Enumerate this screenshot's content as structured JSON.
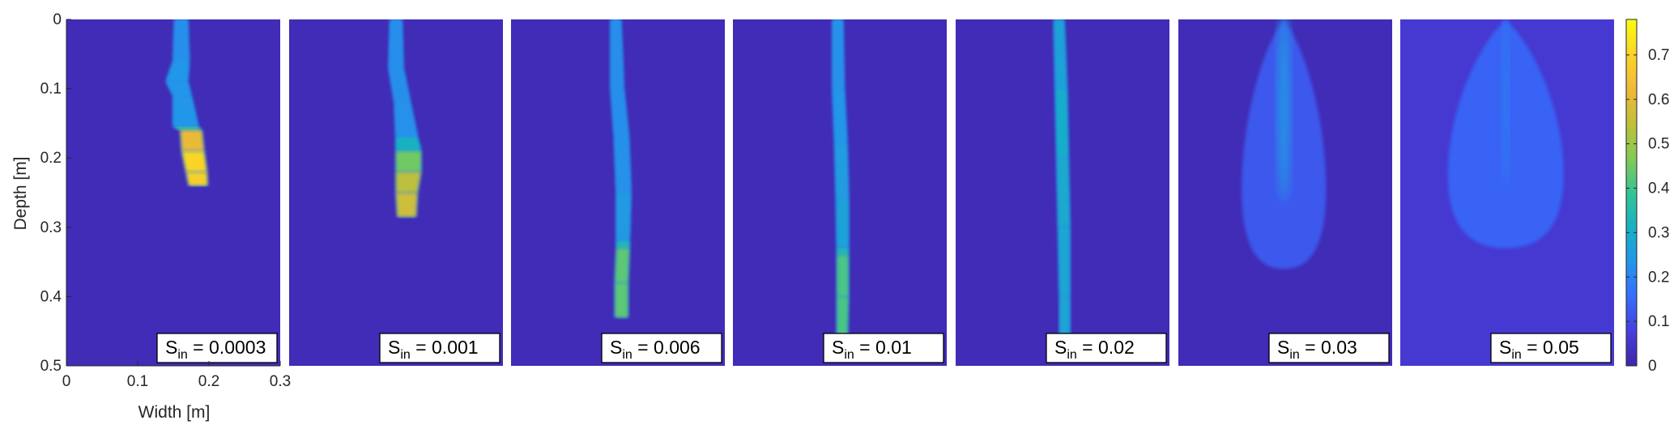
{
  "chart_data": {
    "type": "heatmap",
    "xlabel": "Width [m]",
    "ylabel": "Depth [m]",
    "xlim": [
      0,
      0.3
    ],
    "ylim": [
      0,
      0.5
    ],
    "x_ticks": [
      "0",
      "0.1",
      "0.2",
      "0.3"
    ],
    "y_ticks": [
      "0",
      "0.1",
      "0.2",
      "0.3",
      "0.4",
      "0.5"
    ],
    "colorbar": {
      "colormap": "parula",
      "range": [
        0,
        0.78
      ],
      "ticks": [
        "0",
        "0.1",
        "0.2",
        "0.3",
        "0.4",
        "0.5",
        "0.6",
        "0.7"
      ]
    },
    "background_value": 0.02,
    "panels": [
      {
        "legend": "S_in = 0.0003",
        "legend_main": "S",
        "legend_sub": "in",
        "legend_value": " = 0.0003",
        "plume_type": "finger",
        "finger": [
          [
            0.0,
            0.152,
            0.17,
            0.22
          ],
          [
            0.06,
            0.15,
            0.172,
            0.22
          ],
          [
            0.09,
            0.14,
            0.17,
            0.25
          ],
          [
            0.11,
            0.15,
            0.175,
            0.22
          ],
          [
            0.155,
            0.15,
            0.185,
            0.25
          ],
          [
            0.16,
            0.16,
            0.19,
            0.55
          ],
          [
            0.19,
            0.162,
            0.193,
            0.68
          ],
          [
            0.22,
            0.168,
            0.197,
            0.72
          ],
          [
            0.24,
            0.172,
            0.198,
            0.65
          ]
        ]
      },
      {
        "legend": "S_in = 0.001",
        "legend_main": "S",
        "legend_sub": "in",
        "legend_value": " = 0.001",
        "plume_type": "finger",
        "finger": [
          [
            0.0,
            0.142,
            0.158,
            0.22
          ],
          [
            0.07,
            0.14,
            0.16,
            0.22
          ],
          [
            0.12,
            0.148,
            0.17,
            0.22
          ],
          [
            0.17,
            0.15,
            0.18,
            0.23
          ],
          [
            0.19,
            0.15,
            0.185,
            0.4
          ],
          [
            0.22,
            0.15,
            0.185,
            0.5
          ],
          [
            0.25,
            0.15,
            0.18,
            0.58
          ],
          [
            0.285,
            0.152,
            0.178,
            0.55
          ]
        ]
      },
      {
        "legend": "S_in = 0.006",
        "legend_main": "S",
        "legend_sub": "in",
        "legend_value": " = 0.006",
        "plume_type": "finger",
        "finger": [
          [
            0.0,
            0.14,
            0.154,
            0.22
          ],
          [
            0.1,
            0.14,
            0.158,
            0.22
          ],
          [
            0.17,
            0.145,
            0.165,
            0.22
          ],
          [
            0.25,
            0.148,
            0.168,
            0.23
          ],
          [
            0.32,
            0.148,
            0.166,
            0.26
          ],
          [
            0.33,
            0.148,
            0.166,
            0.42
          ],
          [
            0.38,
            0.146,
            0.164,
            0.44
          ],
          [
            0.43,
            0.146,
            0.164,
            0.42
          ]
        ]
      },
      {
        "legend": "S_in = 0.01",
        "legend_main": "S",
        "legend_sub": "in",
        "legend_value": " = 0.01",
        "plume_type": "finger",
        "finger": [
          [
            0.0,
            0.14,
            0.154,
            0.22
          ],
          [
            0.1,
            0.14,
            0.156,
            0.23
          ],
          [
            0.18,
            0.143,
            0.16,
            0.24
          ],
          [
            0.26,
            0.145,
            0.162,
            0.26
          ],
          [
            0.33,
            0.146,
            0.162,
            0.28
          ],
          [
            0.34,
            0.146,
            0.162,
            0.4
          ],
          [
            0.4,
            0.146,
            0.162,
            0.42
          ],
          [
            0.48,
            0.146,
            0.16,
            0.4
          ]
        ]
      },
      {
        "legend": "S_in = 0.02",
        "legend_main": "S",
        "legend_sub": "in",
        "legend_value": " = 0.02",
        "plume_type": "finger",
        "finger": [
          [
            0.0,
            0.138,
            0.152,
            0.24
          ],
          [
            0.1,
            0.14,
            0.156,
            0.3
          ],
          [
            0.2,
            0.142,
            0.158,
            0.3
          ],
          [
            0.3,
            0.144,
            0.16,
            0.28
          ],
          [
            0.4,
            0.146,
            0.16,
            0.28
          ],
          [
            0.49,
            0.146,
            0.16,
            0.27
          ]
        ]
      },
      {
        "legend": "S_in = 0.03",
        "legend_main": "S",
        "legend_sub": "in",
        "legend_value": " = 0.03",
        "plume_type": "bulb",
        "bulb": {
          "center_x": 0.148,
          "half_width": 0.062,
          "depth": 0.36,
          "value": 0.12,
          "core_value": 0.24,
          "core_half_width": 0.008
        }
      },
      {
        "legend": "S_in = 0.05",
        "legend_main": "S",
        "legend_sub": "in",
        "legend_value": " = 0.05",
        "plume_type": "bulb",
        "bulb": {
          "center_x": 0.148,
          "half_width": 0.085,
          "depth": 0.33,
          "value": 0.14,
          "core_value": 0.2,
          "core_half_width": 0.004
        },
        "background_value": 0.06
      }
    ]
  }
}
